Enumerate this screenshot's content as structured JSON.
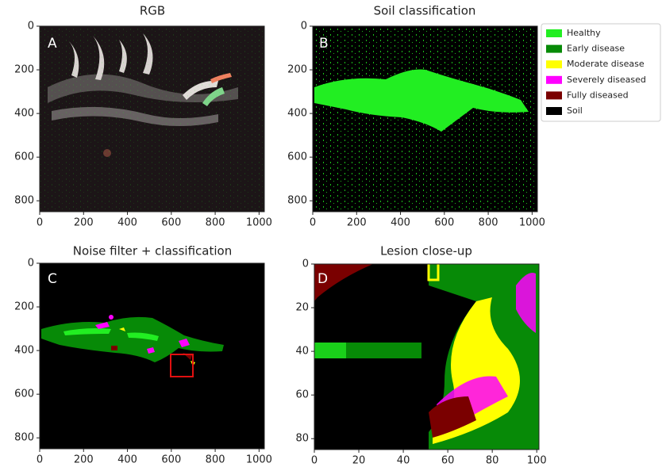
{
  "panels": [
    {
      "title": "RGB",
      "label": "A",
      "xlim": [
        0,
        1024
      ],
      "ylim": [
        850,
        0
      ],
      "xticks": [
        0,
        200,
        400,
        600,
        800,
        1000
      ],
      "yticks": [
        0,
        200,
        400,
        600,
        800
      ]
    },
    {
      "title": "Soil classification",
      "label": "B",
      "xlim": [
        0,
        1024
      ],
      "ylim": [
        850,
        0
      ],
      "xticks": [
        0,
        200,
        400,
        600,
        800,
        1000
      ],
      "yticks": [
        0,
        200,
        400,
        600,
        800
      ]
    },
    {
      "title": "Noise filter + classification",
      "label": "C",
      "xlim": [
        0,
        1024
      ],
      "ylim": [
        850,
        0
      ],
      "xticks": [
        0,
        200,
        400,
        600,
        800,
        1000
      ],
      "yticks": [
        0,
        200,
        400,
        600,
        800
      ]
    },
    {
      "title": "Lesion close-up",
      "label": "D",
      "xlim": [
        0,
        101
      ],
      "ylim": [
        85,
        0
      ],
      "xticks": [
        0,
        20,
        40,
        60,
        80,
        100
      ],
      "yticks": [
        0,
        20,
        40,
        60,
        80
      ]
    }
  ],
  "legend": [
    {
      "name": "Healthy",
      "color": "#22ee22"
    },
    {
      "name": "Early disease",
      "color": "#078a07"
    },
    {
      "name": "Moderate disease",
      "color": "#ffff00"
    },
    {
      "name": "Severely diseased",
      "color": "#ff00ff"
    },
    {
      "name": "Fully diseased",
      "color": "#7a0000"
    },
    {
      "name": "Soil",
      "color": "#000000"
    }
  ]
}
